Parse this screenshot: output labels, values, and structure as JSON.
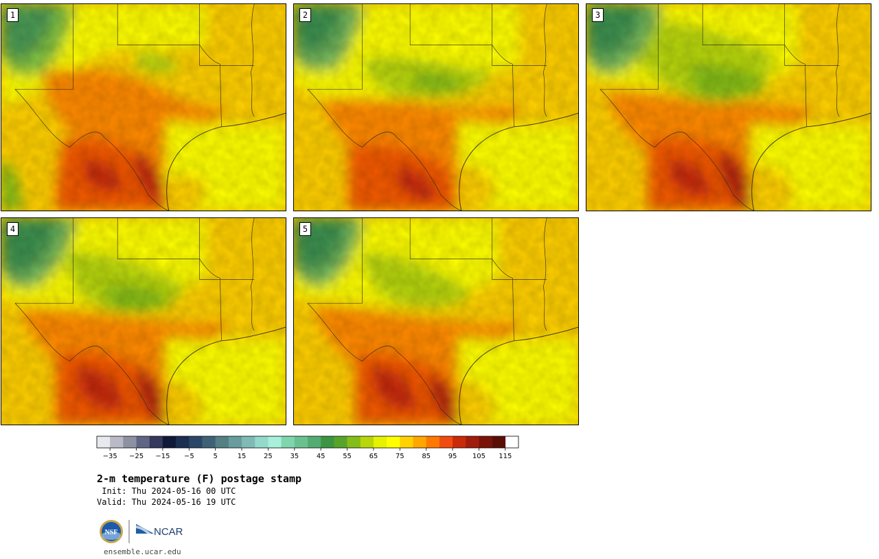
{
  "panels": [
    {
      "label": "1"
    },
    {
      "label": "2"
    },
    {
      "label": "3"
    },
    {
      "label": "4"
    },
    {
      "label": "5"
    }
  ],
  "colorbar": {
    "tick_labels": [
      "−35",
      "−25",
      "−15",
      "−5",
      "5",
      "15",
      "25",
      "35",
      "45",
      "55",
      "65",
      "75",
      "85",
      "95",
      "105",
      "115"
    ],
    "colors": [
      "#e8e9ed",
      "#b9bac5",
      "#8d91a2",
      "#5f6582",
      "#34395d",
      "#0f1a38",
      "#1a2f52",
      "#2b4768",
      "#3e6176",
      "#548085",
      "#699c9c",
      "#7fbab4",
      "#93dacb",
      "#a6f0dc",
      "#7fd6ac",
      "#6ac18f",
      "#55ac72",
      "#3c9540",
      "#57a42b",
      "#85bd18",
      "#b8d60a",
      "#e6f200",
      "#ffff00",
      "#ffd200",
      "#ffa600",
      "#ff7800",
      "#f14c10",
      "#c82a0a",
      "#a11d0b",
      "#7a1408",
      "#5a0f06"
    ],
    "range": [
      -40,
      120
    ],
    "step": 5
  },
  "title": "2-m temperature (F) postage stamp",
  "init_label": " Init: Thu 2024-05-16 00 UTC",
  "valid_label": "Valid: Thu 2024-05-16 19 UTC",
  "logos": {
    "nsf": "NSF",
    "ncar": "NCAR"
  },
  "site": "ensemble.ucar.edu"
}
